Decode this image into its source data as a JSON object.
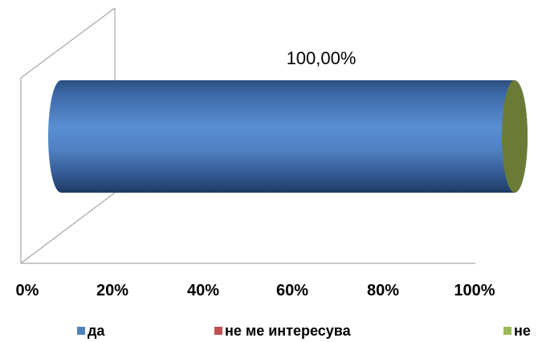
{
  "chart_data": {
    "type": "bar",
    "orientation": "horizontal",
    "style": "3d-cylinder",
    "stacked": "percent",
    "categories": [
      ""
    ],
    "series": [
      {
        "name": "да",
        "values": [
          100.0
        ],
        "color": "#4f81bd"
      },
      {
        "name": "не ме интересува",
        "values": [
          0.0
        ],
        "color": "#c0504d"
      },
      {
        "name": "не",
        "values": [
          0.0
        ],
        "color": "#9bbb59"
      }
    ],
    "data_labels": [
      "100,00%"
    ],
    "xlim": [
      0,
      100
    ],
    "x_ticks": [
      "0%",
      "20%",
      "40%",
      "60%",
      "80%",
      "100%"
    ],
    "grid": false,
    "legend_position": "bottom"
  }
}
